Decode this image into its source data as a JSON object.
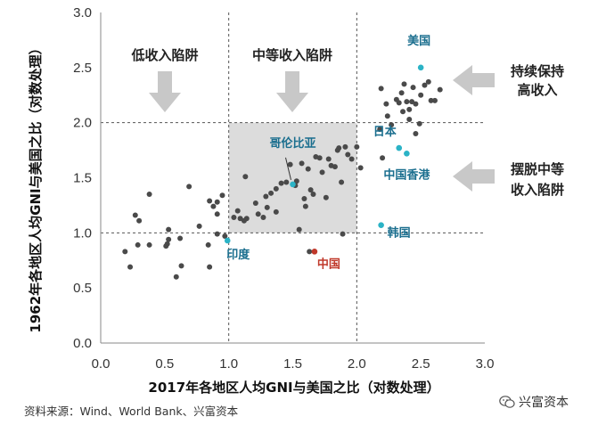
{
  "chart_data": {
    "type": "scatter",
    "xlabel": "2017年各地区人均GNI与美国之比（对数处理）",
    "ylabel": "1962年各地区人均GNI与美国之比（对数处理）",
    "xlim": [
      0.0,
      3.0
    ],
    "ylim": [
      0.0,
      3.0
    ],
    "x_ticks": [
      "0.0",
      "0.5",
      "1.0",
      "1.5",
      "2.0",
      "2.5",
      "3.0"
    ],
    "y_ticks": [
      "0.0",
      "0.5",
      "1.0",
      "1.5",
      "2.0",
      "2.5",
      "3.0"
    ],
    "grid": false,
    "divider_lines": {
      "x": [
        1.0,
        2.0
      ],
      "y": [
        1.0,
        2.0
      ]
    },
    "highlight_region": {
      "x": [
        1.0,
        2.0
      ],
      "y": [
        1.0,
        2.0
      ]
    },
    "region_labels": [
      "低收入陷阱",
      "中等收入陷阱"
    ],
    "side_labels": [
      {
        "lines": [
          "持续保持",
          "高收入"
        ]
      },
      {
        "lines": [
          "摆脱中等",
          "收入陷阱"
        ]
      }
    ],
    "labeled_points": [
      {
        "label": "美国",
        "x": 2.5,
        "y": 2.5,
        "color": "#2bb3c6",
        "label_color": "#1a6e8e"
      },
      {
        "label": "日本",
        "x": 2.33,
        "y": 1.77,
        "color": "#2bb3c6",
        "label_color": "#1a6e8e"
      },
      {
        "label": "中国香港",
        "x": 2.39,
        "y": 1.72,
        "color": "#2bb3c6",
        "label_color": "#1a6e8e"
      },
      {
        "label": "哥伦比亚",
        "x": 1.5,
        "y": 1.44,
        "color": "#2bb3c6",
        "label_color": "#1a6e8e"
      },
      {
        "label": "韩国",
        "x": 2.19,
        "y": 1.07,
        "color": "#2bb3c6",
        "label_color": "#1a6e8e"
      },
      {
        "label": "印度",
        "x": 0.99,
        "y": 0.93,
        "color": "#2bb3c6",
        "label_color": "#1a6e8e"
      },
      {
        "label": "中国",
        "x": 1.67,
        "y": 0.83,
        "color": "#c0392b",
        "label_color": "#c0392b"
      }
    ],
    "series": [
      {
        "color": "#4a4a4a",
        "points": [
          [
            0.19,
            0.83
          ],
          [
            0.23,
            0.69
          ],
          [
            0.27,
            1.16
          ],
          [
            0.3,
            1.11
          ],
          [
            0.29,
            0.89
          ],
          [
            0.38,
            1.35
          ],
          [
            0.38,
            0.89
          ],
          [
            0.51,
            0.88
          ],
          [
            0.52,
            0.9
          ],
          [
            0.53,
            0.94
          ],
          [
            0.53,
            1.03
          ],
          [
            0.59,
            0.6
          ],
          [
            0.62,
            0.95
          ],
          [
            0.63,
            0.7
          ],
          [
            0.69,
            1.42
          ],
          [
            0.77,
            1.06
          ],
          [
            0.84,
            0.89
          ],
          [
            0.85,
            0.69
          ],
          [
            0.85,
            1.29
          ],
          [
            0.88,
            1.24
          ],
          [
            0.91,
            1.28
          ],
          [
            0.91,
            1.17
          ],
          [
            0.91,
            0.99
          ],
          [
            0.95,
            1.34
          ],
          [
            0.97,
            0.97
          ],
          [
            1.04,
            1.14
          ],
          [
            1.07,
            1.2
          ],
          [
            1.09,
            1.13
          ],
          [
            1.12,
            1.11
          ],
          [
            1.14,
            1.13
          ],
          [
            1.13,
            1.51
          ],
          [
            1.21,
            1.27
          ],
          [
            1.23,
            1.17
          ],
          [
            1.27,
            1.14
          ],
          [
            1.29,
            1.33
          ],
          [
            1.3,
            1.23
          ],
          [
            1.33,
            1.36
          ],
          [
            1.37,
            1.19
          ],
          [
            1.37,
            1.4
          ],
          [
            1.41,
            1.45
          ],
          [
            1.45,
            1.46
          ],
          [
            1.48,
            1.62
          ],
          [
            1.52,
            1.43
          ],
          [
            1.53,
            1.47
          ],
          [
            1.55,
            1.03
          ],
          [
            1.57,
            1.63
          ],
          [
            1.59,
            1.31
          ],
          [
            1.6,
            1.24
          ],
          [
            1.62,
            1.58
          ],
          [
            1.63,
            0.83
          ],
          [
            1.64,
            1.39
          ],
          [
            1.66,
            1.35
          ],
          [
            1.68,
            1.69
          ],
          [
            1.71,
            1.68
          ],
          [
            1.73,
            1.55
          ],
          [
            1.76,
            1.32
          ],
          [
            1.78,
            1.67
          ],
          [
            1.8,
            1.61
          ],
          [
            1.83,
            1.6
          ],
          [
            1.85,
            1.75
          ],
          [
            1.86,
            1.77
          ],
          [
            1.88,
            1.46
          ],
          [
            1.89,
            0.99
          ],
          [
            1.91,
            1.78
          ],
          [
            1.93,
            1.71
          ],
          [
            1.96,
            1.67
          ],
          [
            2.0,
            1.78
          ],
          [
            2.03,
            1.59
          ],
          [
            2.18,
            1.94
          ],
          [
            2.2,
            1.68
          ],
          [
            2.23,
            2.17
          ],
          [
            2.24,
            2.06
          ],
          [
            2.27,
            1.98
          ],
          [
            2.31,
            2.21
          ],
          [
            2.33,
            2.18
          ],
          [
            2.35,
            2.27
          ],
          [
            2.36,
            2.1
          ],
          [
            2.37,
            2.35
          ],
          [
            2.39,
            2.19
          ],
          [
            2.41,
            2.03
          ],
          [
            2.41,
            2.12
          ],
          [
            2.43,
            2.19
          ],
          [
            2.44,
            2.32
          ],
          [
            2.46,
            2.17
          ],
          [
            2.49,
            1.99
          ],
          [
            2.5,
            2.25
          ],
          [
            2.53,
            2.34
          ],
          [
            2.56,
            2.37
          ],
          [
            2.58,
            2.2
          ],
          [
            2.61,
            2.2
          ],
          [
            2.65,
            2.3
          ],
          [
            2.46,
            1.9
          ],
          [
            2.19,
            2.31
          ]
        ]
      }
    ]
  },
  "source_text": "资料来源：Wind、World Bank、兴富资本",
  "brand_text": "兴富资本"
}
